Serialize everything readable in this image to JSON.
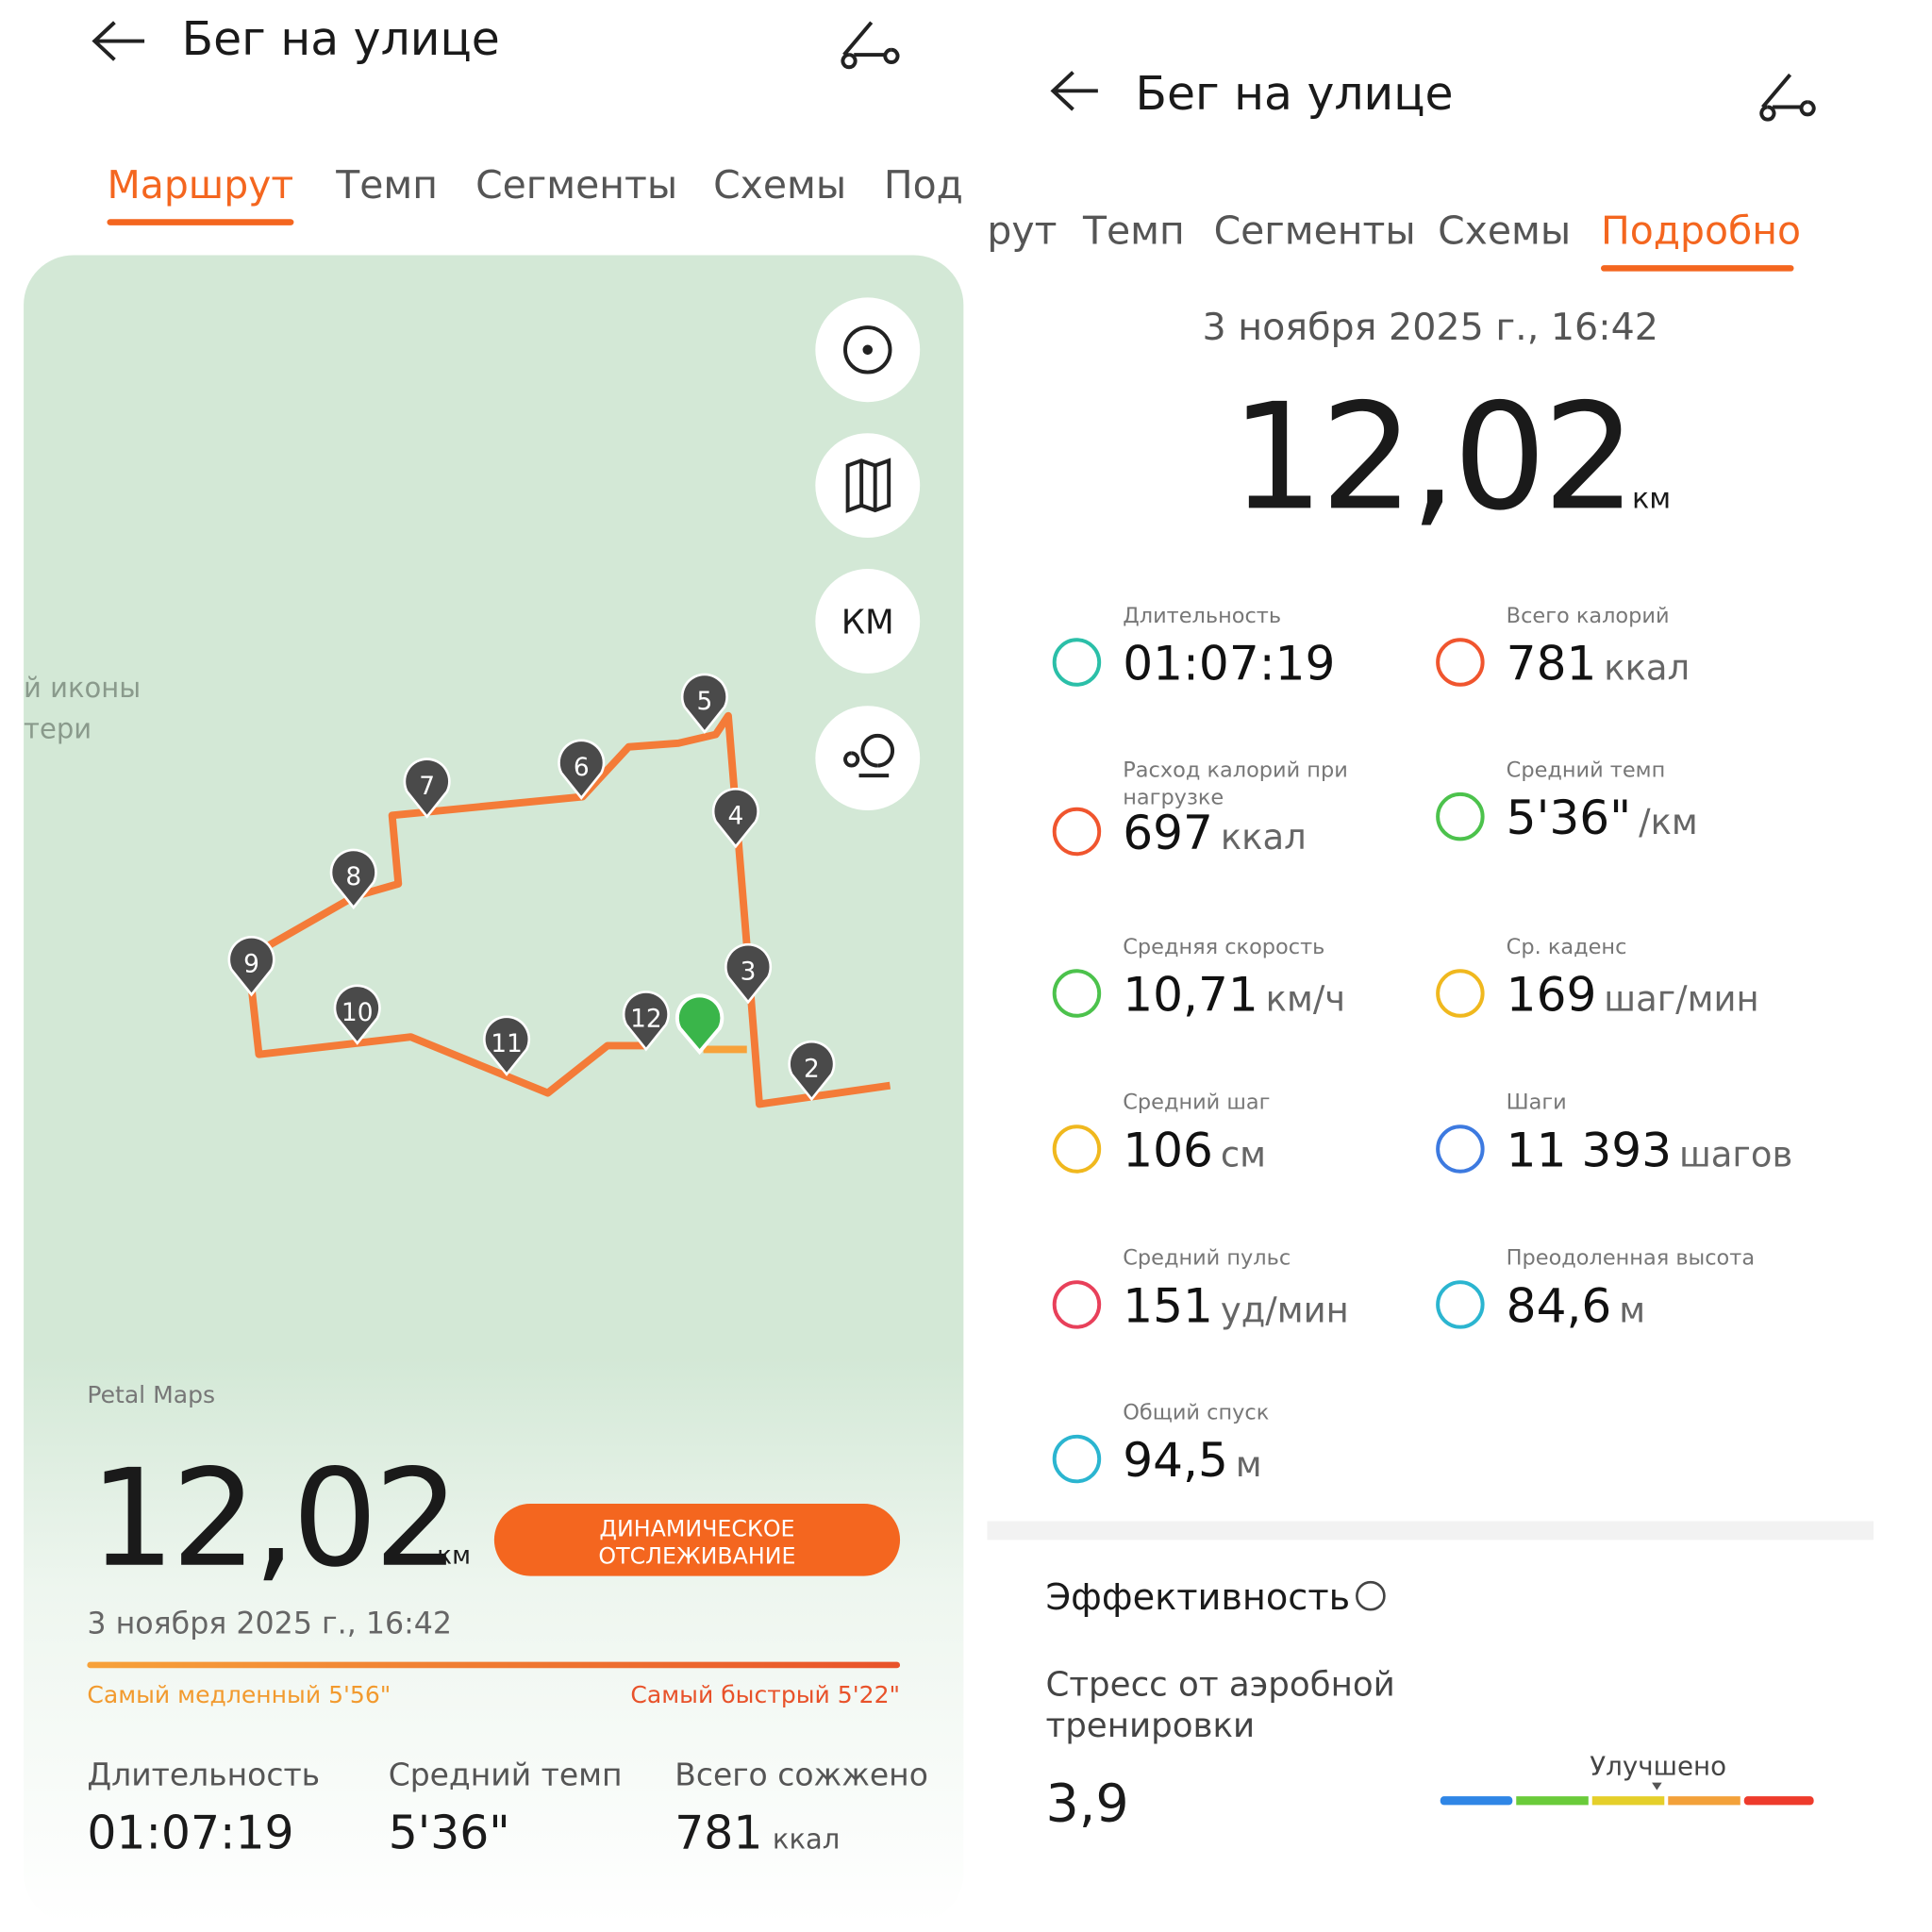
{
  "left": {
    "header": {
      "title": "Бег на улице"
    },
    "tabs": [
      "Маршрут",
      "Темп",
      "Сегменты",
      "Схемы",
      "Под"
    ],
    "map": {
      "place_label": [
        "й иконы",
        "тери"
      ],
      "km_button": "КМ",
      "markers": [
        "2",
        "3",
        "4",
        "5",
        "6",
        "7",
        "8",
        "9",
        "10",
        "11",
        "12"
      ],
      "attribution": "Petal Maps"
    },
    "summary": {
      "distance": "12,02",
      "unit": "км",
      "button": [
        "ДИНАМИЧЕСКОЕ",
        "ОТСЛЕЖИВАНИЕ"
      ],
      "date": "3 ноября 2025 г., 16:42",
      "slowest": "Самый медленный 5'56\"",
      "fastest": "Самый быстрый 5'22\"",
      "stats": [
        {
          "label": "Длительность",
          "value": "01:07:19"
        },
        {
          "label": "Средний темп",
          "value": "5'36\""
        },
        {
          "label": "Всего сожжено",
          "value": "781",
          "unit": "ккал"
        }
      ]
    }
  },
  "right": {
    "header": {
      "title": "Бег на улице"
    },
    "tabs": [
      "рут",
      "Темп",
      "Сегменты",
      "Схемы",
      "Подробно"
    ],
    "date": "3 ноября 2025 г., 16:42",
    "distance": "12,02",
    "unit": "км",
    "metrics": [
      {
        "label": [
          "Длительность"
        ],
        "value": "01:07:19"
      },
      {
        "label": [
          "Всего калорий"
        ],
        "value": "781",
        "unit": "ккал"
      },
      {
        "label": [
          "Расход калорий при",
          "нагрузке"
        ],
        "value": "697",
        "unit": "ккал"
      },
      {
        "label": [
          "Средний темп"
        ],
        "value": "5'36\"",
        "unit": "/км"
      },
      {
        "label": [
          "Средняя скорость"
        ],
        "value": "10,71",
        "unit": "км/ч"
      },
      {
        "label": [
          "Ср. каденс"
        ],
        "value": "169",
        "unit": "шаг/мин"
      },
      {
        "label": [
          "Средний шаг"
        ],
        "value": "106",
        "unit": "см"
      },
      {
        "label": [
          "Шаги"
        ],
        "value": "11 393",
        "unit": "шагов"
      },
      {
        "label": [
          "Средний пульс"
        ],
        "value": "151",
        "unit": "уд/мин"
      },
      {
        "label": [
          "Преодоленная высота"
        ],
        "value": "84,6",
        "unit": "м"
      },
      {
        "label": [
          "Общий спуск"
        ],
        "value": "94,5",
        "unit": "м"
      }
    ],
    "efficiency": {
      "title": "Эффективность",
      "stress_label": [
        "Стресс от аэробной",
        "тренировки"
      ],
      "stress_value": "3,9",
      "level": "Улучшено"
    }
  }
}
